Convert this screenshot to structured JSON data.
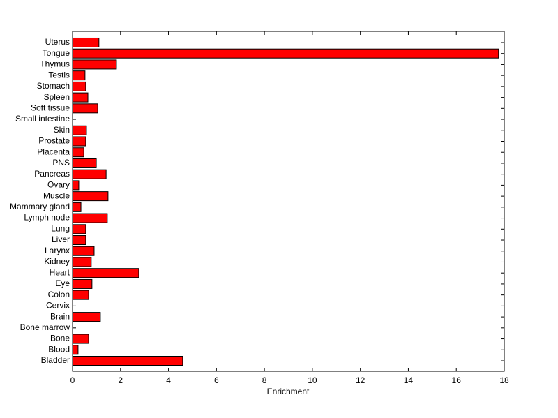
{
  "chart_data": {
    "type": "hbar",
    "xlabel": "Enrichment",
    "color": "#ff0000",
    "categories": [
      "Bladder",
      "Blood",
      "Bone",
      "Bone marrow",
      "Brain",
      "Cervix",
      "Colon",
      "Eye",
      "Heart",
      "Kidney",
      "Larynx",
      "Liver",
      "Lung",
      "Lymph node",
      "Mammary gland",
      "Muscle",
      "Ovary",
      "Pancreas",
      "PNS",
      "Placenta",
      "Prostate",
      "Skin",
      "Small intestine",
      "Soft tissue",
      "Spleen",
      "Stomach",
      "Testis",
      "Thymus",
      "Tongue",
      "Uterus"
    ],
    "values": [
      4.59,
      0.23,
      0.67,
      0,
      1.16,
      0,
      0.67,
      0.81,
      2.76,
      0.78,
      0.9,
      0.55,
      0.55,
      1.45,
      0.35,
      1.48,
      0.26,
      1.4,
      0.99,
      0.47,
      0.55,
      0.58,
      0,
      1.05,
      0.64,
      0.55,
      0.52,
      1.83,
      17.76,
      1.1
    ],
    "xlim": [
      0,
      18
    ],
    "xticks": [
      0,
      2,
      4,
      6,
      8,
      10,
      12,
      14,
      16,
      18
    ]
  }
}
